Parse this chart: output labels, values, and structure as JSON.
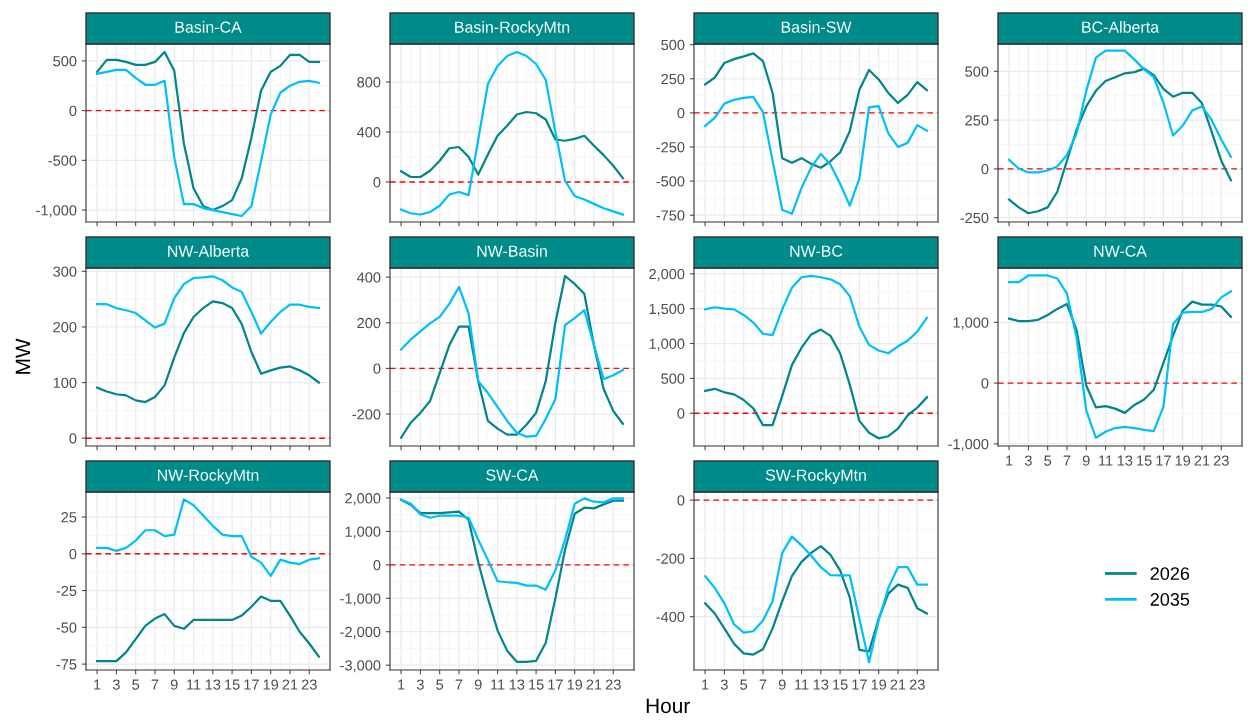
{
  "chart_data": [
    {
      "type": "line",
      "title": "Basin-CA",
      "x": [
        1,
        2,
        3,
        4,
        5,
        6,
        7,
        8,
        9,
        10,
        11,
        12,
        13,
        14,
        15,
        16,
        17,
        18,
        19,
        20,
        21,
        22,
        23,
        24
      ],
      "xlim": [
        -0.15,
        25.15
      ],
      "xticks": [
        1,
        3,
        5,
        7,
        9,
        11,
        13,
        15,
        17,
        19,
        21,
        23
      ],
      "ylim": [
        -1120,
        670
      ],
      "yticks": [
        {
          "value": -1000,
          "label": "-1,000"
        },
        -500,
        0,
        500
      ],
      "grid": true,
      "legend": "right",
      "tick_labels": "y",
      "ref_lines": [
        {
          "axis": "y",
          "value": 0,
          "color": "#ff0000",
          "line_style": "dashed"
        }
      ],
      "series": [
        {
          "name": "2026",
          "color": "#00868b",
          "values": [
            390,
            510,
            510,
            490,
            460,
            460,
            490,
            590,
            400,
            -330,
            -780,
            -960,
            -1000,
            -960,
            -900,
            -680,
            -270,
            200,
            390,
            450,
            560,
            560,
            490,
            490
          ]
        },
        {
          "name": "2035",
          "color": "#00bfff",
          "values": [
            370,
            390,
            410,
            410,
            330,
            260,
            260,
            300,
            -470,
            -940,
            -940,
            -980,
            -1000,
            -1020,
            -1040,
            -1060,
            -960,
            -510,
            -40,
            180,
            250,
            290,
            300,
            280
          ]
        }
      ]
    },
    {
      "type": "line",
      "title": "Basin-RockyMtn",
      "x": [
        1,
        2,
        3,
        4,
        5,
        6,
        7,
        8,
        9,
        10,
        11,
        12,
        13,
        14,
        15,
        16,
        17,
        18,
        19,
        20,
        21,
        22,
        23,
        24
      ],
      "xlim": [
        -0.15,
        25.15
      ],
      "xticks": [
        1,
        3,
        5,
        7,
        9,
        11,
        13,
        15,
        17,
        19,
        21,
        23
      ],
      "ylim": [
        -320,
        1104
      ],
      "yticks": [
        0,
        400,
        800
      ],
      "grid": true,
      "tick_labels": "y",
      "ref_lines": [
        {
          "axis": "y",
          "value": 0,
          "color": "#ff0000",
          "line_style": "dashed"
        }
      ],
      "series": [
        {
          "name": "2026",
          "color": "#00868b",
          "values": [
            86,
            40,
            40,
            90,
            170,
            270,
            280,
            200,
            60,
            220,
            370,
            450,
            540,
            560,
            550,
            500,
            340,
            330,
            345,
            370,
            290,
            215,
            130,
            30
          ]
        },
        {
          "name": "2035",
          "color": "#00bfff",
          "values": [
            -220,
            -250,
            -260,
            -240,
            -190,
            -100,
            -80,
            -105,
            340,
            784,
            928,
            1008,
            1040,
            1008,
            944,
            816,
            400,
            10,
            -112,
            -140,
            -175,
            -210,
            -235,
            -260
          ]
        }
      ]
    },
    {
      "type": "line",
      "title": "Basin-SW",
      "x": [
        1,
        2,
        3,
        4,
        5,
        6,
        7,
        8,
        9,
        10,
        11,
        12,
        13,
        14,
        15,
        16,
        17,
        18,
        19,
        20,
        21,
        22,
        23,
        24
      ],
      "xlim": [
        -0.15,
        25.15
      ],
      "xticks": [
        1,
        3,
        5,
        7,
        9,
        11,
        13,
        15,
        17,
        19,
        21,
        23
      ],
      "ylim": [
        -800,
        505
      ],
      "yticks": [
        -750,
        -500,
        -250,
        0,
        250,
        500
      ],
      "grid": true,
      "tick_labels": "y",
      "ref_lines": [
        {
          "axis": "y",
          "value": 0,
          "color": "#ff0000",
          "line_style": "dashed"
        }
      ],
      "series": [
        {
          "name": "2026",
          "color": "#00868b",
          "values": [
            208,
            259,
            366,
            394,
            414,
            436,
            380,
            146,
            -332,
            -366,
            -332,
            -374,
            -402,
            -355,
            -290,
            -135,
            169,
            315,
            245,
            146,
            73,
            132,
            225,
            166
          ]
        },
        {
          "name": "2035",
          "color": "#00bfff",
          "values": [
            -96,
            -37,
            68,
            96,
            110,
            118,
            5,
            -350,
            -710,
            -740,
            -550,
            -400,
            -300,
            -380,
            -520,
            -680,
            -480,
            40,
            50,
            -150,
            -250,
            -220,
            -90,
            -130
          ]
        }
      ]
    },
    {
      "type": "line",
      "title": "BC-Alberta",
      "x": [
        1,
        2,
        3,
        4,
        5,
        6,
        7,
        8,
        9,
        10,
        11,
        12,
        13,
        14,
        15,
        16,
        17,
        18,
        19,
        20,
        21,
        22,
        23,
        24
      ],
      "xlim": [
        -0.15,
        25.15
      ],
      "xticks": [
        1,
        3,
        5,
        7,
        9,
        11,
        13,
        15,
        17,
        19,
        21,
        23
      ],
      "ylim": [
        -272,
        640
      ],
      "yticks": [
        -250,
        0,
        250,
        500
      ],
      "grid": true,
      "tick_labels": "y",
      "ref_lines": [
        {
          "axis": "y",
          "value": 0,
          "color": "#ff0000",
          "line_style": "dashed"
        }
      ],
      "series": [
        {
          "name": "2026",
          "color": "#00868b",
          "values": [
            -157,
            -197,
            -227,
            -217,
            -197,
            -117,
            42,
            201,
            320,
            400,
            450,
            470,
            490,
            496,
            514,
            480,
            410,
            370,
            390,
            390,
            336,
            191,
            42,
            -58
          ]
        },
        {
          "name": "2035",
          "color": "#00bfff",
          "values": [
            46,
            2,
            -18,
            -18,
            -8,
            12,
            72,
            181,
            400,
            570,
            606,
            606,
            606,
            560,
            510,
            470,
            340,
            171,
            221,
            300,
            320,
            251,
            151,
            62
          ]
        }
      ]
    },
    {
      "type": "line",
      "title": "NW-Alberta",
      "ylabel": "MW",
      "x": [
        1,
        2,
        3,
        4,
        5,
        6,
        7,
        8,
        9,
        10,
        11,
        12,
        13,
        14,
        15,
        16,
        17,
        18,
        19,
        20,
        21,
        22,
        23,
        24
      ],
      "xlim": [
        -0.15,
        25.15
      ],
      "xticks": [
        1,
        3,
        5,
        7,
        9,
        11,
        13,
        15,
        17,
        19,
        21,
        23
      ],
      "ylim": [
        -14,
        306
      ],
      "yticks": [
        0,
        100,
        200,
        300
      ],
      "grid": true,
      "tick_labels": "y",
      "ref_lines": [
        {
          "axis": "y",
          "value": 0,
          "color": "#ff0000",
          "line_style": "dashed"
        }
      ],
      "series": [
        {
          "name": "2026",
          "color": "#00868b",
          "values": [
            91,
            84,
            79,
            77,
            68,
            65,
            74,
            95,
            145,
            189,
            218,
            234,
            246,
            243,
            234,
            205,
            155,
            116,
            122,
            127,
            129,
            122,
            113,
            100
          ]
        },
        {
          "name": "2035",
          "color": "#00bfff",
          "values": [
            241,
            241,
            234,
            230,
            225,
            212,
            199,
            206,
            252,
            277,
            288,
            289,
            291,
            284,
            271,
            263,
            227,
            188,
            209,
            227,
            240,
            240,
            236,
            234
          ]
        }
      ]
    },
    {
      "type": "line",
      "title": "NW-Basin",
      "x": [
        1,
        2,
        3,
        4,
        5,
        6,
        7,
        8,
        9,
        10,
        11,
        12,
        13,
        14,
        15,
        16,
        17,
        18,
        19,
        20,
        21,
        22,
        23,
        24
      ],
      "xlim": [
        -0.15,
        25.15
      ],
      "xticks": [
        1,
        3,
        5,
        7,
        9,
        11,
        13,
        15,
        17,
        19,
        21,
        23
      ],
      "ylim": [
        -340,
        440
      ],
      "yticks": [
        -200,
        0,
        200,
        400
      ],
      "grid": true,
      "tick_labels": "y",
      "ref_lines": [
        {
          "axis": "y",
          "value": 0,
          "color": "#ff0000",
          "line_style": "dashed"
        }
      ],
      "series": [
        {
          "name": "2026",
          "color": "#00868b",
          "values": [
            -304,
            -238,
            -195,
            -143,
            -21,
            101,
            183,
            183,
            -56,
            -230,
            -264,
            -290,
            -290,
            -247,
            -195,
            -56,
            200,
            405,
            370,
            327,
            101,
            -90,
            -186,
            -243
          ]
        },
        {
          "name": "2035",
          "color": "#00bfff",
          "values": [
            83,
            127,
            162,
            197,
            226,
            283,
            357,
            240,
            -56,
            -108,
            -169,
            -230,
            -282,
            -299,
            -296,
            -221,
            -134,
            190,
            220,
            255,
            101,
            -47,
            -30,
            -7
          ]
        }
      ]
    },
    {
      "type": "line",
      "title": "NW-BC",
      "x": [
        1,
        2,
        3,
        4,
        5,
        6,
        7,
        8,
        9,
        10,
        11,
        12,
        13,
        14,
        15,
        16,
        17,
        18,
        19,
        20,
        21,
        22,
        23,
        24
      ],
      "xlim": [
        -0.15,
        25.15
      ],
      "xticks": [
        1,
        3,
        5,
        7,
        9,
        11,
        13,
        15,
        17,
        19,
        21,
        23
      ],
      "ylim": [
        -470,
        2083
      ],
      "yticks": [
        0,
        500,
        {
          "value": 1000,
          "label": "1,000"
        },
        {
          "value": 1500,
          "label": "1,500"
        },
        {
          "value": 2000,
          "label": "2,000"
        }
      ],
      "grid": true,
      "tick_labels": "y",
      "ref_lines": [
        {
          "axis": "y",
          "value": 0,
          "color": "#ff0000",
          "line_style": "dashed"
        }
      ],
      "series": [
        {
          "name": "2026",
          "color": "#00868b",
          "values": [
            320,
            350,
            300,
            270,
            190,
            70,
            -170,
            -170,
            250,
            690,
            940,
            1130,
            1200,
            1110,
            860,
            410,
            -110,
            -280,
            -360,
            -330,
            -220,
            -30,
            80,
            230
          ]
        },
        {
          "name": "2035",
          "color": "#00bfff",
          "values": [
            1490,
            1520,
            1500,
            1490,
            1410,
            1300,
            1140,
            1120,
            1490,
            1800,
            1950,
            1970,
            1950,
            1920,
            1850,
            1680,
            1240,
            980,
            900,
            860,
            960,
            1040,
            1170,
            1370
          ]
        }
      ]
    },
    {
      "type": "line",
      "title": "NW-CA",
      "x": [
        1,
        2,
        3,
        4,
        5,
        6,
        7,
        8,
        9,
        10,
        11,
        12,
        13,
        14,
        15,
        16,
        17,
        18,
        19,
        20,
        21,
        22,
        23,
        24
      ],
      "xlim": [
        -0.15,
        25.15
      ],
      "xticks": [
        1,
        3,
        5,
        7,
        9,
        11,
        13,
        15,
        17,
        19,
        21,
        23
      ],
      "ylim": [
        -1035,
        1893
      ],
      "yticks": [
        {
          "value": -1000,
          "label": "-1,000"
        },
        0,
        {
          "value": 1000,
          "label": "1,000"
        }
      ],
      "grid": true,
      "ref_lines": [
        {
          "axis": "y",
          "value": 0,
          "color": "#ff0000",
          "line_style": "dashed"
        }
      ],
      "series": [
        {
          "name": "2026",
          "color": "#00868b",
          "values": [
            1060,
            1020,
            1020,
            1040,
            1120,
            1220,
            1300,
            870,
            -40,
            -400,
            -380,
            -420,
            -490,
            -360,
            -270,
            -110,
            330,
            780,
            1190,
            1340,
            1290,
            1290,
            1260,
            1090
          ]
        },
        {
          "name": "2035",
          "color": "#00bfff",
          "values": [
            1660,
            1660,
            1770,
            1770,
            1770,
            1720,
            1470,
            750,
            -450,
            -900,
            -800,
            -740,
            -720,
            -740,
            -770,
            -790,
            -390,
            970,
            1160,
            1170,
            1170,
            1220,
            1410,
            1510
          ]
        }
      ]
    },
    {
      "type": "line",
      "title": "NW-RockyMtn",
      "x": [
        1,
        2,
        3,
        4,
        5,
        6,
        7,
        8,
        9,
        10,
        11,
        12,
        13,
        14,
        15,
        16,
        17,
        18,
        19,
        20,
        21,
        22,
        23,
        24
      ],
      "xlim": [
        -0.15,
        25.15
      ],
      "xticks": [
        1,
        3,
        5,
        7,
        9,
        11,
        13,
        15,
        17,
        19,
        21,
        23
      ],
      "ylim": [
        -79,
        42
      ],
      "yticks": [
        -75,
        -50,
        -25,
        0,
        25
      ],
      "grid": true,
      "ref_lines": [
        {
          "axis": "y",
          "value": 0,
          "color": "#ff0000",
          "line_style": "dashed"
        }
      ],
      "series": [
        {
          "name": "2026",
          "color": "#00868b",
          "values": [
            -73,
            -73,
            -73,
            -67,
            -58,
            -49,
            -44,
            -41,
            -49,
            -51,
            -45,
            -45,
            -45,
            -45,
            -45,
            -42,
            -36,
            -29,
            -32,
            -32,
            -42,
            -53,
            -61,
            -70
          ]
        },
        {
          "name": "2035",
          "color": "#00bfff",
          "values": [
            4,
            4,
            2,
            4,
            9,
            16,
            16,
            12,
            13,
            37,
            33,
            26,
            19,
            13,
            12,
            12,
            -2,
            -6,
            -15,
            -4,
            -6,
            -7,
            -4,
            -3
          ]
        }
      ]
    },
    {
      "type": "line",
      "title": "SW-CA",
      "xlabel": "Hour",
      "x": [
        1,
        2,
        3,
        4,
        5,
        6,
        7,
        8,
        9,
        10,
        11,
        12,
        13,
        14,
        15,
        16,
        17,
        18,
        19,
        20,
        21,
        22,
        23,
        24
      ],
      "xlim": [
        -0.15,
        25.15
      ],
      "xticks": [
        1,
        3,
        5,
        7,
        9,
        11,
        13,
        15,
        17,
        19,
        21,
        23
      ],
      "ylim": [
        -3145,
        2180
      ],
      "yticks": [
        {
          "value": -3000,
          "label": "-3,000"
        },
        {
          "value": -2000,
          "label": "-2,000"
        },
        {
          "value": -1000,
          "label": "-1,000"
        },
        0,
        {
          "value": 1000,
          "label": "1,000"
        },
        {
          "value": 2000,
          "label": "2,000"
        }
      ],
      "grid": true,
      "ref_lines": [
        {
          "axis": "y",
          "value": 0,
          "color": "#ff0000",
          "line_style": "dashed"
        }
      ],
      "series": [
        {
          "name": "2026",
          "color": "#00868b",
          "values": [
            1950,
            1800,
            1550,
            1550,
            1550,
            1570,
            1590,
            1350,
            80,
            -1000,
            -1960,
            -2570,
            -2900,
            -2900,
            -2870,
            -2330,
            -1000,
            450,
            1530,
            1710,
            1690,
            1810,
            1920,
            1920
          ]
        },
        {
          "name": "2035",
          "color": "#00bfff",
          "values": [
            1950,
            1830,
            1510,
            1410,
            1470,
            1470,
            1470,
            1410,
            750,
            150,
            -490,
            -520,
            -540,
            -620,
            -620,
            -740,
            -160,
            750,
            1830,
            1990,
            1890,
            1870,
            1990,
            1990
          ]
        }
      ]
    },
    {
      "type": "line",
      "title": "SW-RockyMtn",
      "x": [
        1,
        2,
        3,
        4,
        5,
        6,
        7,
        8,
        9,
        10,
        11,
        12,
        13,
        14,
        15,
        16,
        17,
        18,
        19,
        20,
        21,
        22,
        23,
        24
      ],
      "xlim": [
        -0.15,
        25.15
      ],
      "xticks": [
        1,
        3,
        5,
        7,
        9,
        11,
        13,
        15,
        17,
        19,
        21,
        23
      ],
      "ylim": [
        -583,
        28
      ],
      "yticks": [
        -400,
        -200,
        0
      ],
      "grid": true,
      "ref_lines": [
        {
          "axis": "y",
          "value": 0,
          "color": "#ff0000",
          "line_style": "dashed"
        }
      ],
      "series": [
        {
          "name": "2026",
          "color": "#00868b",
          "values": [
            -354,
            -389,
            -440,
            -493,
            -526,
            -530,
            -512,
            -440,
            -347,
            -261,
            -212,
            -181,
            -158,
            -188,
            -241,
            -334,
            -514,
            -519,
            -407,
            -321,
            -290,
            -301,
            -371,
            -389
          ]
        },
        {
          "name": "2035",
          "color": "#00bfff",
          "values": [
            -261,
            -301,
            -354,
            -426,
            -455,
            -450,
            -413,
            -347,
            -181,
            -125,
            -155,
            -191,
            -230,
            -257,
            -258,
            -258,
            -407,
            -556,
            -413,
            -301,
            -230,
            -230,
            -290,
            -290
          ]
        }
      ]
    }
  ]
}
